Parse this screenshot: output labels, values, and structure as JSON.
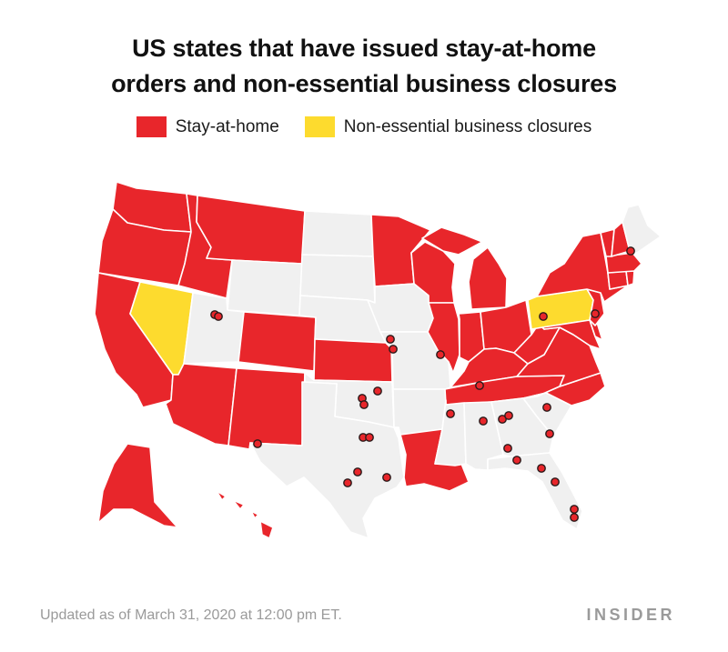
{
  "title": {
    "line1": "US states that have issued stay-at-home",
    "line2": "orders and non-essential business closures"
  },
  "legend": [
    {
      "label": "Stay-at-home",
      "color": "#e8262b"
    },
    {
      "label": "Non-essential business closures",
      "color": "#fddb2e"
    }
  ],
  "colors": {
    "stay_at_home": "#e8262b",
    "non_essential": "#fddb2e",
    "none": "#f0f0f0",
    "border": "#ffffff",
    "city_dot": "#e8262b",
    "city_dot_outline": "#2a1a1a"
  },
  "states": {
    "stay_at_home": [
      "WA",
      "OR",
      "CA",
      "ID",
      "MT",
      "CO",
      "AZ",
      "NM",
      "KS",
      "MN",
      "WI",
      "IL",
      "MI",
      "IN",
      "OH",
      "KY",
      "TN",
      "WV",
      "VA",
      "NC",
      "MD",
      "DE",
      "NJ",
      "NY",
      "CT",
      "RI",
      "MA",
      "VT",
      "NH",
      "LA",
      "AK",
      "HI"
    ],
    "non_essential_business_closures": [
      "NV",
      "PA"
    ]
  },
  "footer": {
    "note": "Updated as of March 31, 2020 at 12:00 pm ET.",
    "brand": "INSIDER"
  }
}
